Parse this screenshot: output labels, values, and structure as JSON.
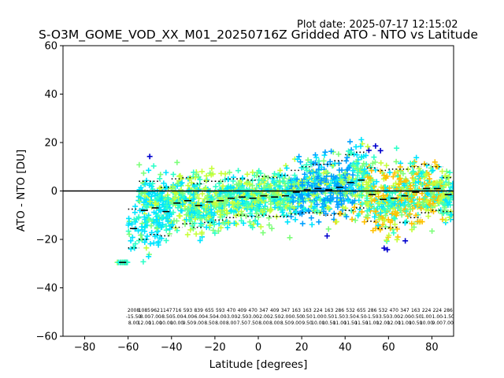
{
  "plot_date_label": "Plot date: 2025-07-17 12:15:02",
  "chart_data": {
    "type": "scatter",
    "title": "S-O3M_GOME_VOD_XX_M01_20250716Z Gridded ATO - NTO vs Latitude",
    "xlabel": "Latitude [degrees]",
    "ylabel": "ATO - NTO [DU]",
    "xlim": [
      -90,
      90
    ],
    "ylim": [
      -60,
      60
    ],
    "xticks": [
      -80,
      -60,
      -40,
      -20,
      0,
      20,
      40,
      60,
      80
    ],
    "yticks": [
      -60,
      -40,
      -20,
      0,
      20,
      40,
      60
    ],
    "grid": false,
    "legend": "none",
    "reference_line_y": 0,
    "marker": "+",
    "point_colors": [
      "#0000cd",
      "#00a0ff",
      "#00e5ff",
      "#2effc8",
      "#7dff7a",
      "#c6ff3a",
      "#f2ff1a",
      "#ffc000"
    ],
    "bin_width_deg": 5,
    "bins": [
      {
        "lat": -62.5,
        "mean": -29.5,
        "std": 0.0
      },
      {
        "lat": -57.5,
        "mean": -15.5,
        "std": 8.0
      },
      {
        "lat": -52.5,
        "mean": -8.0,
        "std": 12.0
      },
      {
        "lat": -47.5,
        "mean": -7.0,
        "std": 11.0
      },
      {
        "lat": -42.5,
        "mean": -8.5,
        "std": 10.0
      },
      {
        "lat": -37.5,
        "mean": -5.0,
        "std": 10.0
      },
      {
        "lat": -32.5,
        "mean": -4.0,
        "std": 9.5
      },
      {
        "lat": -27.5,
        "mean": -6.0,
        "std": 9.0
      },
      {
        "lat": -22.5,
        "mean": -4.5,
        "std": 8.5
      },
      {
        "lat": -17.5,
        "mean": -4.0,
        "std": 8.0
      },
      {
        "lat": -12.5,
        "mean": -3.0,
        "std": 8.0
      },
      {
        "lat": -7.5,
        "mean": -2.5,
        "std": 7.5
      },
      {
        "lat": -2.5,
        "mean": -3.0,
        "std": 7.5
      },
      {
        "lat": 2.5,
        "mean": -2.0,
        "std": 8.0
      },
      {
        "lat": 7.5,
        "mean": -2.5,
        "std": 8.0
      },
      {
        "lat": 12.5,
        "mean": -2.0,
        "std": 8.5
      },
      {
        "lat": 17.5,
        "mean": -0.5,
        "std": 9.0
      },
      {
        "lat": 22.5,
        "mean": 0.5,
        "std": 9.5
      },
      {
        "lat": 27.5,
        "mean": 1.0,
        "std": 10.0
      },
      {
        "lat": 32.5,
        "mean": 0.5,
        "std": 10.5
      },
      {
        "lat": 37.5,
        "mean": 1.5,
        "std": 11.0
      },
      {
        "lat": 42.5,
        "mean": 3.5,
        "std": 11.5
      },
      {
        "lat": 47.5,
        "mean": 4.5,
        "std": 11.5
      },
      {
        "lat": 52.5,
        "mean": -1.5,
        "std": 11.0
      },
      {
        "lat": 57.5,
        "mean": -3.5,
        "std": 12.0
      },
      {
        "lat": 62.5,
        "mean": -3.0,
        "std": 12.0
      },
      {
        "lat": 67.5,
        "mean": -2.0,
        "std": 11.0
      },
      {
        "lat": 72.5,
        "mean": -0.5,
        "std": 10.5
      },
      {
        "lat": 77.5,
        "mean": 1.0,
        "std": 10.0
      },
      {
        "lat": 82.5,
        "mean": 1.0,
        "std": 9.0
      },
      {
        "lat": 87.5,
        "mean": -1.5,
        "std": 7.0
      }
    ]
  }
}
